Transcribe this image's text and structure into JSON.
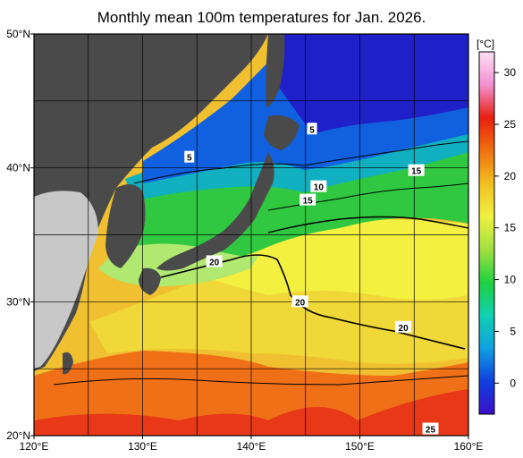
{
  "title": "Monthly mean 100m temperatures for Jan. 2026.",
  "lat_labels": [
    "50°N",
    "40°N",
    "30°N",
    "20°N"
  ],
  "lon_labels": [
    "120°E",
    "130°E",
    "140°E",
    "150°E",
    "160°E"
  ],
  "colorbar": {
    "unit": "[°C]",
    "ticks": [
      "30",
      "25",
      "20",
      "15",
      "10",
      "5",
      "0"
    ],
    "range": [
      -3,
      32
    ],
    "colors": [
      "#3a10c8",
      "#1040e0",
      "#10a0e0",
      "#10d0b0",
      "#20d040",
      "#a0e040",
      "#f0f040",
      "#f0c020",
      "#f07010",
      "#e82010",
      "#f090d0",
      "#ffe0f8"
    ]
  },
  "contour_labels": [
    {
      "text": "5",
      "lon": 134.3,
      "lat": 40.8
    },
    {
      "text": "5",
      "lon": 145.6,
      "lat": 42.9
    },
    {
      "text": "15",
      "lon": 155.2,
      "lat": 39.8
    },
    {
      "text": "10",
      "lon": 146.2,
      "lat": 38.6
    },
    {
      "text": "15",
      "lon": 145.2,
      "lat": 37.6
    },
    {
      "text": "20",
      "lon": 136.6,
      "lat": 33.0
    },
    {
      "text": "20",
      "lon": 144.5,
      "lat": 30.0
    },
    {
      "text": "20",
      "lon": 154.0,
      "lat": 28.1
    },
    {
      "text": "25",
      "lon": 156.5,
      "lat": 20.5
    }
  ],
  "colors": {
    "land": "#4a4a4a",
    "land_light": "#c8c8c8",
    "cold_deep": "#1a1ad0",
    "cold": "#1060e0",
    "mid": "#20c060",
    "cool_green": "#40e040",
    "warm": "#f0e040",
    "hot": "#f08020",
    "very_hot": "#f02020"
  }
}
